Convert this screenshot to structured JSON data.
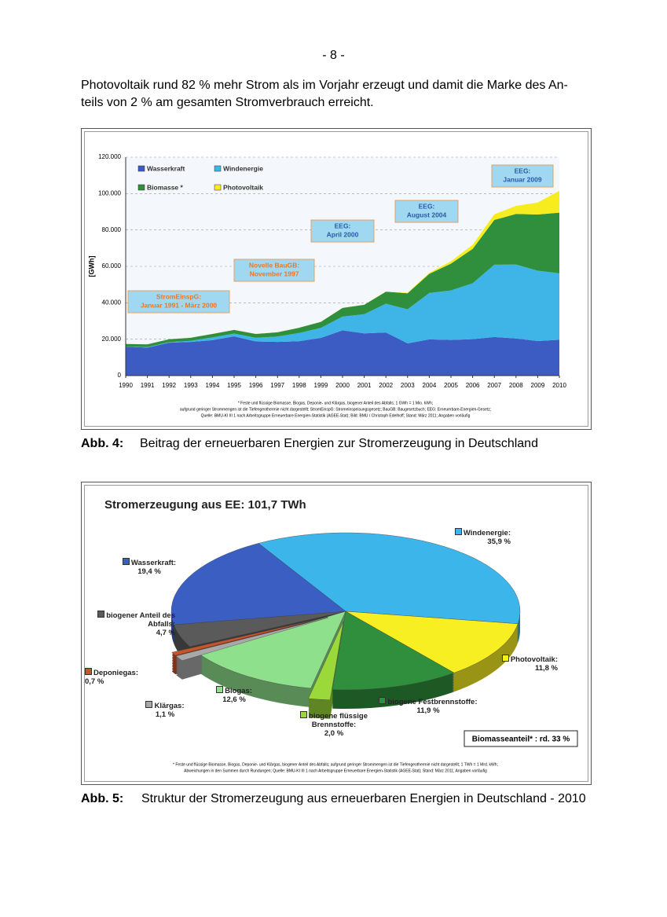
{
  "header": {
    "page_number": "- 8 -"
  },
  "paragraph": [
    "Photovoltaik rund 82 % mehr Strom als im Vorjahr erzeugt und damit die Marke des An-",
    "teils von 2 % am gesamten Stromverbrauch erreicht."
  ],
  "figures": [
    {
      "label": "Abb. 4:",
      "caption": "Beitrag der erneuerbaren Energien zur Stromerzeugung in Deutschland"
    },
    {
      "label": "Abb. 5:",
      "caption": "Struktur der Stromerzeugung aus erneuerbaren Energien in Deutschland - 2010"
    }
  ],
  "chart_data": [
    {
      "type": "stacked_area",
      "y_label": "[GWh]",
      "x": [
        1990,
        1991,
        1992,
        1993,
        1994,
        1995,
        1996,
        1997,
        1998,
        1999,
        2000,
        2001,
        2002,
        2003,
        2004,
        2005,
        2006,
        2007,
        2008,
        2009,
        2010
      ],
      "xlim": [
        1990,
        2010
      ],
      "xticks": [
        1990,
        1991,
        1992,
        1993,
        1994,
        1995,
        1996,
        1997,
        1998,
        1999,
        2000,
        2001,
        2002,
        2003,
        2004,
        2005,
        2006,
        2007,
        2008,
        2009,
        2010
      ],
      "ylim": [
        0,
        120000
      ],
      "yticks": [
        0,
        {
          "value": 20000,
          "label": "20.000"
        },
        {
          "value": 40000,
          "label": "40.000"
        },
        {
          "value": 60000,
          "label": "60.000"
        },
        {
          "value": 80000,
          "label": "80.000"
        },
        {
          "value": 100000,
          "label": "100.000"
        },
        {
          "value": 120000,
          "label": "120.000"
        }
      ],
      "grid": true,
      "series": [
        {
          "name": "Wasserkraft",
          "color": "#3c5cc4",
          "values": [
            15900,
            15400,
            18100,
            18500,
            19500,
            21600,
            18800,
            18500,
            18900,
            20700,
            24900,
            23200,
            23700,
            17700,
            19900,
            19600,
            20000,
            21200,
            20400,
            19000,
            19700
          ]
        },
        {
          "name": "Windenergie",
          "color": "#3fb4e6",
          "values": [
            70,
            250,
            280,
            600,
            1500,
            1500,
            2000,
            3000,
            4500,
            5500,
            7550,
            10500,
            15800,
            18700,
            25500,
            27200,
            30700,
            39700,
            40600,
            38600,
            36500
          ]
        },
        {
          "name": "Biomasse *",
          "color": "#2f8f3c",
          "values": [
            1400,
            1500,
            1600,
            1700,
            1900,
            2000,
            2100,
            2300,
            2900,
            3300,
            4700,
            5200,
            6600,
            8800,
            10500,
            14700,
            18900,
            24600,
            27800,
            30900,
            33300
          ]
        },
        {
          "name": "Photovoltaik",
          "color": "#f6ec1e",
          "values": [
            1,
            1,
            3,
            6,
            8,
            11,
            16,
            26,
            32,
            42,
            60,
            76,
            162,
            313,
            556,
            1282,
            2220,
            3075,
            4420,
            6583,
            12000
          ]
        }
      ],
      "annotations": [
        [
          "StromEinspG:",
          "Januar 1991 - März 2000"
        ],
        [
          "Novelle BauGB:",
          "November 1997"
        ],
        [
          "EEG:",
          "April 2000"
        ],
        [
          "EEG:",
          "August 2004"
        ],
        [
          "EEG:",
          "Januar 2009"
        ]
      ],
      "footnote": [
        "* Feste und flüssige Biomasse, Biogas, Deponie- und Klärgas, biogener Anteil des Abfalls; 1 GWh = 1 Mio. kWh;",
        "aufgrund geringer Strommengen ist die Tiefengeothermie nicht dargestellt; StromEinspG: Stromeinspeisungsgesetz; BauGB: Baugesetzbuch; EEG: Erneuerbare-Energien-Gesetz;",
        "Quelle: BMU-KI III 1 nach Arbeitsgruppe Erneuerbare Energien-Statistik (AGEE-Stat); Bild: BMU / Christoph Edelhoff; Stand: März 2011; Angaben vorläufig"
      ]
    },
    {
      "type": "pie",
      "title": "Stromerzeugung aus EE: 101,7 TWh",
      "categories": [
        "Windenergie:",
        "Photovoltaik:",
        "biogene Festbrennstoffe:",
        "biogene flüssige Brennstoffe:",
        "Biogas:",
        "Klärgas:",
        "Deponiegas:",
        "biogener Anteil des Abfalls:",
        "Wasserkraft:"
      ],
      "values": [
        35.9,
        11.8,
        11.9,
        2.0,
        12.6,
        1.1,
        0.7,
        4.7,
        19.4
      ],
      "value_labels": [
        "35,9 %",
        "11,8 %",
        "11,9 %",
        "2,0 %",
        "12,6 %",
        "1,1 %",
        "0,7 %",
        "4,7 %",
        "19,4 %"
      ],
      "colors": [
        "#3cb6ea",
        "#f7ef22",
        "#2f8f3c",
        "#9bd83a",
        "#8fe08c",
        "#a8a8a8",
        "#c8542c",
        "#5a5a5a",
        "#3a5ec2"
      ],
      "note": "Biomasseanteil* : rd. 33 %",
      "footnote": [
        "* Feste und flüssige Biomasse, Biogas, Deponie- und Klärgas, biogener Anteil des Abfalls; aufgrund geringer Strommengen ist die Tiefengeothermie nicht dargestellt; 1 TWh = 1 Mrd. kWh;",
        "Abweichungen in den Summen durch Rundungen; Quelle: BMU-KI III 1 nach Arbeitsgruppe Erneuerbare Energien-Statistik (AGEE-Stat); Stand: März 2011; Angaben vorläufig"
      ]
    }
  ]
}
